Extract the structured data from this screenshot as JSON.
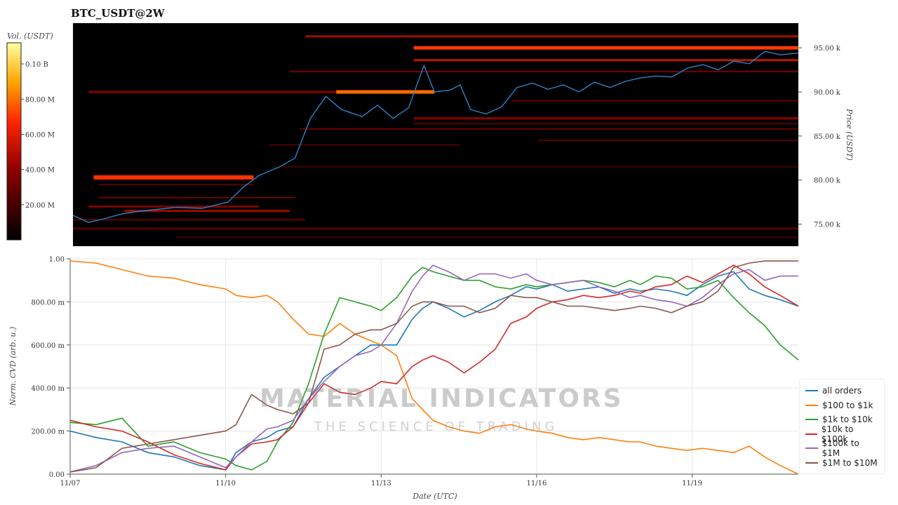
{
  "title": "BTC_USDT@2W",
  "chart_data": [
    {
      "type": "heatmap",
      "title": "BTC_USDT@2W",
      "colorbar": {
        "label": "Vol. (USDT)",
        "ticks": [
          "20.00 M",
          "40.00 M",
          "60.00 M",
          "80.00 M",
          "0.10 B"
        ],
        "tick_values": [
          20,
          40,
          60,
          80,
          100
        ],
        "max": 112
      },
      "y_axis": {
        "label": "Price (USDT)",
        "ticks": [
          "75.00 k",
          "80.00 k",
          "85.00 k",
          "90.00 k",
          "95.00 k"
        ],
        "tick_values": [
          75000,
          80000,
          85000,
          90000,
          95000
        ],
        "range": [
          72500,
          97800
        ]
      },
      "x_range_days": [
        0,
        14.05
      ],
      "price_line": {
        "color": "#2b83c6",
        "x_days": [
          0,
          0.3,
          0.6,
          0.9,
          1.2,
          1.5,
          2.0,
          2.5,
          3.0,
          3.3,
          3.6,
          4.0,
          4.3,
          4.6,
          4.9,
          5.2,
          5.6,
          5.9,
          6.2,
          6.5,
          6.8,
          7.0,
          7.3,
          7.5,
          7.7,
          8.0,
          8.3,
          8.6,
          8.9,
          9.2,
          9.5,
          9.8,
          10.1,
          10.4,
          10.7,
          11.0,
          11.3,
          11.6,
          11.9,
          12.2,
          12.5,
          12.8,
          13.1,
          13.4,
          13.7,
          14.05
        ],
        "prices": [
          76000,
          75200,
          75600,
          76100,
          76400,
          76600,
          76900,
          76800,
          77500,
          79200,
          80500,
          81500,
          82500,
          87000,
          89500,
          88000,
          87200,
          88500,
          87000,
          88200,
          93000,
          90000,
          90200,
          90800,
          88000,
          87500,
          88300,
          90500,
          91000,
          90300,
          90800,
          90000,
          91100,
          90500,
          91200,
          91600,
          91800,
          91700,
          92700,
          93100,
          92500,
          93500,
          93200,
          94600,
          94200,
          94400
        ]
      }
    },
    {
      "type": "line",
      "xlabel": "Date (UTC)",
      "ylabel": "Norm. CVD (arb. u.)",
      "x_ticks": [
        "11/07",
        "11/10",
        "11/13",
        "11/16",
        "11/19"
      ],
      "x_tick_days": [
        0,
        3,
        6,
        9,
        12
      ],
      "x_range_days": [
        0,
        14.05
      ],
      "y_ticks": [
        "0.00",
        "200.00 m",
        "400.00 m",
        "600.00 m",
        "800.00 m",
        "1.00"
      ],
      "y_tick_values": [
        0,
        0.2,
        0.4,
        0.6,
        0.8,
        1.0
      ],
      "ylim": [
        0,
        1.0
      ],
      "grid": true,
      "legend_position": "right",
      "x_days": [
        0,
        0.5,
        1,
        1.5,
        2,
        2.5,
        3,
        3.2,
        3.5,
        3.8,
        4,
        4.3,
        4.6,
        4.9,
        5.2,
        5.5,
        5.8,
        6,
        6.3,
        6.6,
        6.8,
        7,
        7.3,
        7.6,
        7.9,
        8.2,
        8.5,
        8.8,
        9,
        9.3,
        9.6,
        9.9,
        10.2,
        10.5,
        10.8,
        11,
        11.3,
        11.6,
        11.9,
        12.2,
        12.5,
        12.8,
        13.1,
        13.4,
        13.7,
        14.05
      ],
      "series": [
        {
          "name": "all orders",
          "color": "#1f77b4",
          "values": [
            0.2,
            0.17,
            0.15,
            0.1,
            0.08,
            0.04,
            0.02,
            0.1,
            0.15,
            0.17,
            0.2,
            0.22,
            0.35,
            0.45,
            0.5,
            0.55,
            0.6,
            0.6,
            0.6,
            0.72,
            0.77,
            0.8,
            0.77,
            0.73,
            0.76,
            0.8,
            0.83,
            0.87,
            0.86,
            0.88,
            0.85,
            0.86,
            0.87,
            0.84,
            0.86,
            0.85,
            0.86,
            0.85,
            0.83,
            0.88,
            0.92,
            0.94,
            0.86,
            0.83,
            0.81,
            0.78
          ]
        },
        {
          "name": "$100 to $1k",
          "color": "#ff7f0e",
          "values": [
            0.99,
            0.98,
            0.95,
            0.92,
            0.91,
            0.88,
            0.86,
            0.83,
            0.82,
            0.83,
            0.8,
            0.72,
            0.65,
            0.64,
            0.7,
            0.65,
            0.62,
            0.6,
            0.55,
            0.35,
            0.3,
            0.25,
            0.22,
            0.2,
            0.19,
            0.22,
            0.23,
            0.21,
            0.2,
            0.19,
            0.17,
            0.16,
            0.17,
            0.16,
            0.15,
            0.15,
            0.13,
            0.12,
            0.11,
            0.12,
            0.11,
            0.1,
            0.13,
            0.08,
            0.04,
            0.0
          ]
        },
        {
          "name": "$1k to $10k",
          "color": "#2ca02c",
          "values": [
            0.24,
            0.23,
            0.26,
            0.13,
            0.15,
            0.1,
            0.07,
            0.04,
            0.02,
            0.06,
            0.15,
            0.24,
            0.42,
            0.65,
            0.82,
            0.8,
            0.78,
            0.76,
            0.82,
            0.92,
            0.96,
            0.94,
            0.92,
            0.9,
            0.9,
            0.87,
            0.86,
            0.88,
            0.87,
            0.88,
            0.89,
            0.9,
            0.89,
            0.87,
            0.9,
            0.88,
            0.92,
            0.91,
            0.86,
            0.87,
            0.9,
            0.82,
            0.75,
            0.69,
            0.6,
            0.53
          ]
        },
        {
          "name": "$10k to $100k",
          "color": "#d62728",
          "values": [
            0.25,
            0.22,
            0.2,
            0.15,
            0.09,
            0.05,
            0.02,
            0.08,
            0.14,
            0.15,
            0.16,
            0.22,
            0.33,
            0.42,
            0.38,
            0.37,
            0.4,
            0.43,
            0.42,
            0.5,
            0.53,
            0.55,
            0.52,
            0.47,
            0.52,
            0.58,
            0.7,
            0.73,
            0.77,
            0.8,
            0.81,
            0.83,
            0.82,
            0.83,
            0.85,
            0.84,
            0.87,
            0.88,
            0.92,
            0.89,
            0.93,
            0.97,
            0.93,
            0.87,
            0.83,
            0.78
          ]
        },
        {
          "name": "$100k to $1M",
          "color": "#9467bd",
          "values": [
            0.01,
            0.04,
            0.1,
            0.12,
            0.13,
            0.08,
            0.03,
            0.08,
            0.15,
            0.21,
            0.22,
            0.25,
            0.35,
            0.43,
            0.5,
            0.55,
            0.57,
            0.6,
            0.7,
            0.85,
            0.92,
            0.97,
            0.94,
            0.9,
            0.93,
            0.93,
            0.91,
            0.93,
            0.9,
            0.88,
            0.89,
            0.9,
            0.87,
            0.85,
            0.82,
            0.83,
            0.81,
            0.8,
            0.78,
            0.82,
            0.88,
            0.93,
            0.95,
            0.9,
            0.92,
            0.92
          ]
        },
        {
          "name": "$1M to $10M",
          "color": "#8c564b",
          "values": [
            0.01,
            0.03,
            0.12,
            0.14,
            0.16,
            0.18,
            0.2,
            0.23,
            0.37,
            0.32,
            0.3,
            0.28,
            0.33,
            0.58,
            0.6,
            0.65,
            0.67,
            0.67,
            0.7,
            0.78,
            0.8,
            0.8,
            0.78,
            0.78,
            0.75,
            0.77,
            0.83,
            0.82,
            0.82,
            0.8,
            0.78,
            0.78,
            0.77,
            0.76,
            0.77,
            0.78,
            0.77,
            0.75,
            0.78,
            0.8,
            0.85,
            0.96,
            0.98,
            0.99,
            0.99,
            0.99
          ]
        }
      ]
    }
  ],
  "watermark": {
    "title": "MATERIAL INDICATORS",
    "subtitle": "THE SCIENCE OF TRADING"
  }
}
